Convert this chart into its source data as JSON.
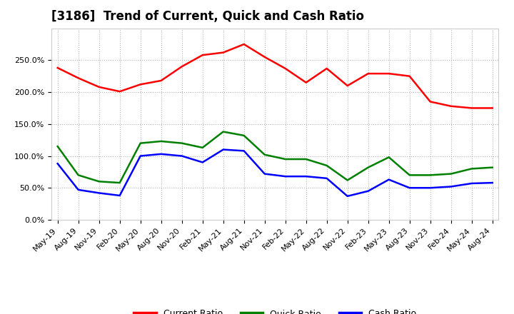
{
  "title": "[3186]  Trend of Current, Quick and Cash Ratio",
  "labels": [
    "May-19",
    "Aug-19",
    "Nov-19",
    "Feb-20",
    "May-20",
    "Aug-20",
    "Nov-20",
    "Feb-21",
    "May-21",
    "Aug-21",
    "Nov-21",
    "Feb-22",
    "May-22",
    "Aug-22",
    "Nov-22",
    "Feb-23",
    "May-23",
    "Aug-23",
    "Nov-23",
    "Feb-24",
    "May-24",
    "Aug-24"
  ],
  "current_ratio": [
    238,
    222,
    208,
    201,
    212,
    218,
    240,
    258,
    262,
    275,
    255,
    237,
    215,
    237,
    210,
    229,
    229,
    225,
    185,
    178,
    175,
    175
  ],
  "quick_ratio": [
    115,
    70,
    60,
    58,
    120,
    123,
    120,
    113,
    138,
    132,
    102,
    95,
    95,
    85,
    62,
    82,
    98,
    70,
    70,
    72,
    80,
    82
  ],
  "cash_ratio": [
    88,
    47,
    42,
    38,
    100,
    103,
    100,
    90,
    110,
    108,
    72,
    68,
    68,
    65,
    37,
    45,
    63,
    50,
    50,
    52,
    57,
    58
  ],
  "current_color": "#ff0000",
  "quick_color": "#008000",
  "cash_color": "#0000ff",
  "ylim": [
    0,
    300
  ],
  "yticks": [
    0,
    50,
    100,
    150,
    200,
    250
  ],
  "background_color": "#ffffff",
  "plot_bg_color": "#ffffff",
  "grid_color": "#aaaaaa",
  "title_fontsize": 12,
  "tick_fontsize": 8,
  "legend_fontsize": 9,
  "linewidth": 1.8
}
